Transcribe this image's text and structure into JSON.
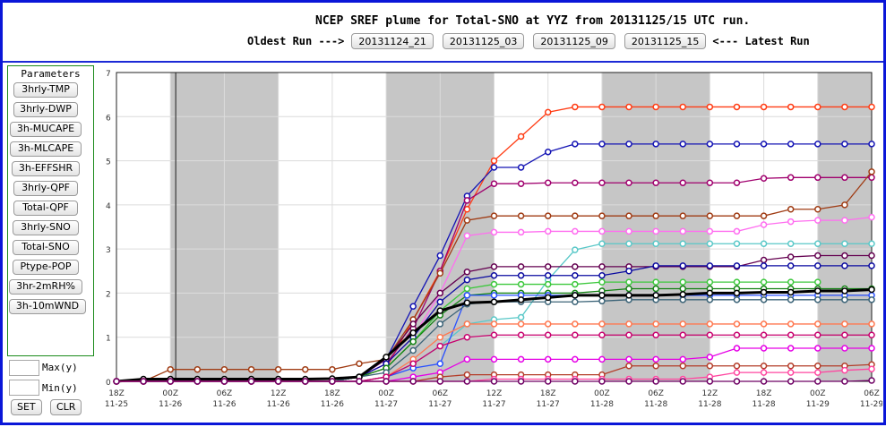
{
  "header": {
    "title": "NCEP SREF plume for Total-SNO at YYZ from 20131125/15 UTC run.",
    "oldest_label": "Oldest Run --->",
    "latest_label": "<--- Latest Run",
    "runs": [
      "20131124_21",
      "20131125_03",
      "20131125_09",
      "20131125_15"
    ]
  },
  "params": {
    "title": "Parameters",
    "buttons": [
      "3hrly-TMP",
      "3hrly-DWP",
      "3h-MUCAPE",
      "3h-MLCAPE",
      "3h-EFFSHR",
      "3hrly-QPF",
      "Total-QPF",
      "3hrly-SNO",
      "Total-SNO",
      "Ptype-POP",
      "3hr-2mRH%",
      "3h-10mWND"
    ],
    "max_label": "Max(y)",
    "min_label": "Min(y)",
    "max_value": "",
    "min_value": "",
    "set_label": "SET",
    "clr_label": "CLR"
  },
  "chart_data": {
    "type": "line",
    "title": "NCEP SREF plume for Total-SNO at YYZ from 20131125/15 UTC run.",
    "xlabel": "",
    "ylabel": "",
    "ylim": [
      0,
      7
    ],
    "yticks": [
      "0",
      "1",
      "2",
      "3",
      "4",
      "5",
      "6",
      "7"
    ],
    "grid": true,
    "x_hours": [
      0,
      3,
      6,
      9,
      12,
      15,
      18,
      21,
      24,
      27,
      30,
      33,
      36,
      39,
      42,
      45,
      48,
      51,
      54,
      57,
      60,
      63,
      66,
      69,
      72,
      75,
      78,
      81,
      84
    ],
    "x_ticks": [
      {
        "hour": 0,
        "label": "18Z",
        "date": "11-25"
      },
      {
        "hour": 6,
        "label": "00Z",
        "date": "11-26"
      },
      {
        "hour": 12,
        "label": "06Z",
        "date": "11-26"
      },
      {
        "hour": 18,
        "label": "12Z",
        "date": "11-26"
      },
      {
        "hour": 24,
        "label": "18Z",
        "date": "11-26"
      },
      {
        "hour": 30,
        "label": "00Z",
        "date": "11-27"
      },
      {
        "hour": 36,
        "label": "06Z",
        "date": "11-27"
      },
      {
        "hour": 42,
        "label": "12Z",
        "date": "11-27"
      },
      {
        "hour": 48,
        "label": "18Z",
        "date": "11-27"
      },
      {
        "hour": 54,
        "label": "00Z",
        "date": "11-28"
      },
      {
        "hour": 60,
        "label": "06Z",
        "date": "11-28"
      },
      {
        "hour": 66,
        "label": "12Z",
        "date": "11-28"
      },
      {
        "hour": 72,
        "label": "18Z",
        "date": "11-28"
      },
      {
        "hour": 78,
        "label": "00Z",
        "date": "11-29"
      },
      {
        "hour": 84,
        "label": "06Z",
        "date": "11-29"
      }
    ],
    "night_shading_hours": [
      [
        6,
        18
      ],
      [
        30,
        42
      ],
      [
        54,
        66
      ],
      [
        78,
        84
      ]
    ],
    "night_shading_color": "#c6c6c6",
    "run_start_hour": 6.6,
    "series": [
      {
        "color": "#ff3c14",
        "values": [
          0,
          0,
          0,
          0,
          0,
          0,
          0,
          0,
          0,
          0.1,
          0.3,
          1.4,
          2.5,
          3.9,
          5.0,
          5.55,
          6.1,
          6.22,
          6.22,
          6.22,
          6.22,
          6.22,
          6.22,
          6.22,
          6.22,
          6.22,
          6.22,
          6.22,
          6.22
        ]
      },
      {
        "color": "#1414b4",
        "values": [
          0,
          0,
          0,
          0,
          0,
          0,
          0,
          0,
          0,
          0.1,
          0.5,
          1.7,
          2.85,
          4.2,
          4.85,
          4.85,
          5.2,
          5.38,
          5.38,
          5.38,
          5.38,
          5.38,
          5.38,
          5.38,
          5.38,
          5.38,
          5.38,
          5.38,
          5.38
        ]
      },
      {
        "color": "#a0006e",
        "values": [
          0,
          0,
          0,
          0,
          0,
          0,
          0,
          0,
          0,
          0.1,
          0.4,
          1.2,
          2.5,
          4.1,
          4.48,
          4.48,
          4.5,
          4.5,
          4.5,
          4.5,
          4.5,
          4.5,
          4.5,
          4.5,
          4.6,
          4.62,
          4.62,
          4.62,
          4.62
        ]
      },
      {
        "color": "#a03c14",
        "values": [
          0,
          0,
          0.27,
          0.27,
          0.27,
          0.27,
          0.27,
          0.27,
          0.27,
          0.4,
          0.5,
          1.4,
          2.45,
          3.65,
          3.75,
          3.75,
          3.75,
          3.75,
          3.75,
          3.75,
          3.75,
          3.75,
          3.75,
          3.75,
          3.75,
          3.9,
          3.9,
          4.0,
          4.75
        ]
      },
      {
        "color": "#ff6ef0",
        "values": [
          0,
          0,
          0,
          0,
          0,
          0,
          0,
          0,
          0,
          0.1,
          0.4,
          1.0,
          2.0,
          3.3,
          3.38,
          3.38,
          3.4,
          3.4,
          3.4,
          3.4,
          3.4,
          3.4,
          3.4,
          3.4,
          3.55,
          3.62,
          3.65,
          3.65,
          3.72
        ]
      },
      {
        "color": "#5ac8c8",
        "values": [
          0,
          0,
          0,
          0,
          0,
          0,
          0,
          0,
          0,
          0,
          0.1,
          0.4,
          0.8,
          1.3,
          1.4,
          1.45,
          2.3,
          2.98,
          3.12,
          3.12,
          3.12,
          3.12,
          3.12,
          3.12,
          3.12,
          3.12,
          3.12,
          3.12,
          3.12
        ]
      },
      {
        "color": "#640050",
        "values": [
          0,
          0,
          0,
          0,
          0,
          0,
          0,
          0,
          0,
          0.1,
          0.5,
          1.3,
          2.0,
          2.48,
          2.6,
          2.6,
          2.6,
          2.6,
          2.6,
          2.6,
          2.6,
          2.6,
          2.6,
          2.6,
          2.75,
          2.82,
          2.85,
          2.85,
          2.85
        ]
      },
      {
        "color": "#0a0aa0",
        "values": [
          0,
          0,
          0,
          0,
          0,
          0,
          0,
          0,
          0,
          0.1,
          0.4,
          1.0,
          1.8,
          2.3,
          2.4,
          2.4,
          2.4,
          2.4,
          2.4,
          2.5,
          2.62,
          2.62,
          2.62,
          2.62,
          2.62,
          2.62,
          2.62,
          2.62,
          2.62
        ]
      },
      {
        "color": "#3cc83c",
        "values": [
          0,
          0,
          0,
          0,
          0,
          0,
          0,
          0,
          0,
          0.1,
          0.3,
          0.9,
          1.6,
          2.1,
          2.2,
          2.2,
          2.2,
          2.2,
          2.25,
          2.25,
          2.25,
          2.25,
          2.25,
          2.25,
          2.25,
          2.25,
          2.25,
          null,
          null
        ]
      },
      {
        "color": "#148214",
        "values": [
          0,
          0,
          0,
          0,
          0,
          0,
          0,
          0,
          0,
          0.1,
          0.3,
          0.9,
          1.5,
          1.95,
          2.0,
          2.0,
          2.0,
          2.0,
          2.05,
          2.1,
          2.1,
          2.1,
          2.1,
          2.1,
          2.1,
          2.1,
          2.1,
          2.1,
          2.1
        ]
      },
      {
        "color": "#2850ff",
        "values": [
          0,
          0,
          0,
          0,
          0,
          0,
          0,
          0,
          0,
          0,
          0.1,
          0.3,
          0.4,
          1.95,
          1.95,
          1.95,
          1.95,
          1.95,
          1.95,
          1.95,
          1.95,
          1.95,
          1.95,
          1.95,
          1.95,
          1.95,
          1.95,
          1.95,
          1.95
        ]
      },
      {
        "color": "#3c6478",
        "values": [
          0,
          0,
          0,
          0,
          0,
          0,
          0,
          0,
          0,
          0.1,
          0.2,
          0.7,
          1.3,
          1.75,
          1.8,
          1.8,
          1.8,
          1.8,
          1.82,
          1.85,
          1.85,
          1.85,
          1.85,
          1.85,
          1.85,
          1.85,
          1.85,
          1.85,
          1.85
        ]
      },
      {
        "color": "#000000",
        "values": [
          0,
          0.05,
          0.05,
          0.05,
          0.05,
          0.05,
          0.05,
          0.05,
          0.06,
          0.1,
          0.55,
          1.1,
          1.6,
          1.78,
          1.8,
          1.85,
          1.9,
          1.95,
          1.95,
          1.95,
          1.95,
          1.97,
          2.0,
          2.0,
          2.02,
          2.02,
          2.05,
          2.05,
          2.08
        ]
      },
      {
        "color": "#ff7850",
        "values": [
          0,
          0,
          0,
          0,
          0,
          0,
          0,
          0,
          0,
          0,
          0.1,
          0.5,
          1.0,
          1.3,
          1.3,
          1.3,
          1.3,
          1.3,
          1.3,
          1.3,
          1.3,
          1.3,
          1.3,
          1.3,
          1.3,
          1.3,
          1.3,
          1.3,
          1.3
        ]
      },
      {
        "color": "#c8006e",
        "values": [
          0,
          0,
          0,
          0,
          0,
          0,
          0,
          0,
          0,
          0,
          0.1,
          0.4,
          0.8,
          1.0,
          1.05,
          1.05,
          1.05,
          1.05,
          1.05,
          1.05,
          1.05,
          1.05,
          1.05,
          1.05,
          1.05,
          1.05,
          1.05,
          1.05,
          1.05
        ]
      },
      {
        "color": "#e600e6",
        "values": [
          0,
          0,
          0,
          0,
          0,
          0,
          0,
          0,
          0,
          0,
          0,
          0.1,
          0.2,
          0.5,
          0.5,
          0.5,
          0.5,
          0.5,
          0.5,
          0.5,
          0.5,
          0.5,
          0.55,
          0.75,
          0.75,
          0.75,
          0.75,
          0.75,
          0.75
        ]
      },
      {
        "color": "#b43c28",
        "values": [
          0,
          0,
          0,
          0,
          0,
          0,
          0,
          0,
          0,
          0,
          0,
          0,
          0.1,
          0.15,
          0.15,
          0.15,
          0.15,
          0.15,
          0.15,
          0.35,
          0.35,
          0.35,
          0.35,
          0.35,
          0.35,
          0.35,
          0.35,
          0.35,
          0.38
        ]
      },
      {
        "color": "#ff46a0",
        "values": [
          0,
          0,
          0,
          0,
          0,
          0,
          0,
          0,
          0,
          0,
          0,
          0,
          0,
          0,
          0.05,
          0.05,
          0.05,
          0.05,
          0.05,
          0.05,
          0.05,
          0.05,
          0.1,
          0.2,
          0.2,
          0.2,
          0.2,
          0.25,
          0.28
        ]
      },
      {
        "color": "#6e0064",
        "values": [
          0,
          0,
          0,
          0,
          0,
          0,
          0,
          0,
          0,
          0,
          0,
          0,
          0,
          0,
          0,
          0,
          0,
          0,
          0,
          0,
          0,
          0,
          0,
          0,
          0,
          0,
          0,
          0,
          0.02
        ]
      }
    ]
  }
}
